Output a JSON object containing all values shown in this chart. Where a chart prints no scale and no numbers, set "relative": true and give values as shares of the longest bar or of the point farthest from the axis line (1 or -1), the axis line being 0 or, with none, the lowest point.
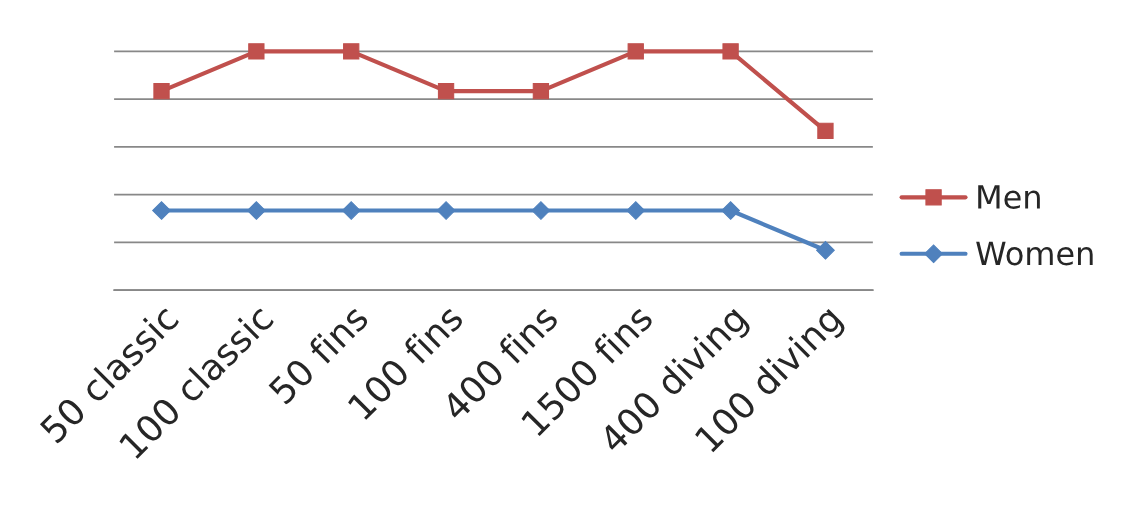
{
  "chart_data": {
    "type": "line",
    "relative": true,
    "categories": [
      "50 classic",
      "100 classic",
      "50 fins",
      "100 fins",
      "400 fins",
      "1500 fins",
      "400 diving",
      "100 diving"
    ],
    "series": [
      {
        "name": "Men",
        "color": "#c0504d",
        "marker": "square",
        "values": [
          0.8333,
          1,
          1,
          0.8333,
          0.8333,
          1,
          1,
          0.6667
        ]
      },
      {
        "name": "Women",
        "color": "#4f81bd",
        "marker": "diamond",
        "values": [
          0.3333,
          0.3333,
          0.3333,
          0.3333,
          0.3333,
          0.3333,
          0.3333,
          0.1667
        ]
      }
    ],
    "grid": "y",
    "legend": "right",
    "line_style": "solid"
  }
}
